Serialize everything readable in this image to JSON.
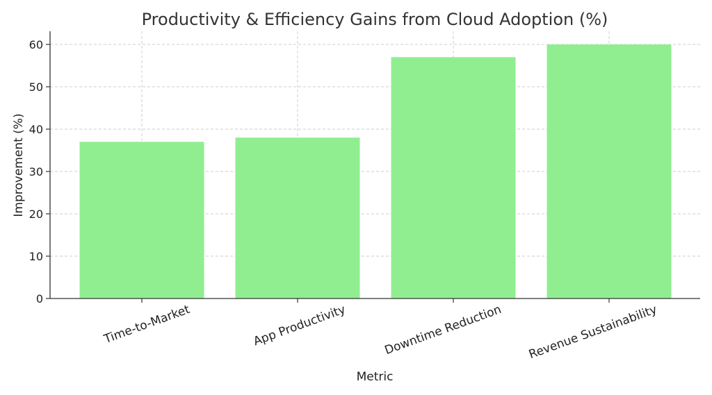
{
  "chart_data": {
    "type": "bar",
    "title": "Productivity & Efficiency Gains from Cloud Adoption (%)",
    "xlabel": "Metric",
    "ylabel": "Improvement (%)",
    "categories": [
      "Time-to-Market",
      "App Productivity",
      "Downtime Reduction",
      "Revenue Sustainability"
    ],
    "values": [
      37,
      38,
      57,
      60
    ],
    "ylim": [
      0,
      63
    ],
    "yticks": [
      0,
      10,
      20,
      30,
      40,
      50,
      60
    ],
    "grid": true,
    "bar_color": "#90ee90"
  }
}
